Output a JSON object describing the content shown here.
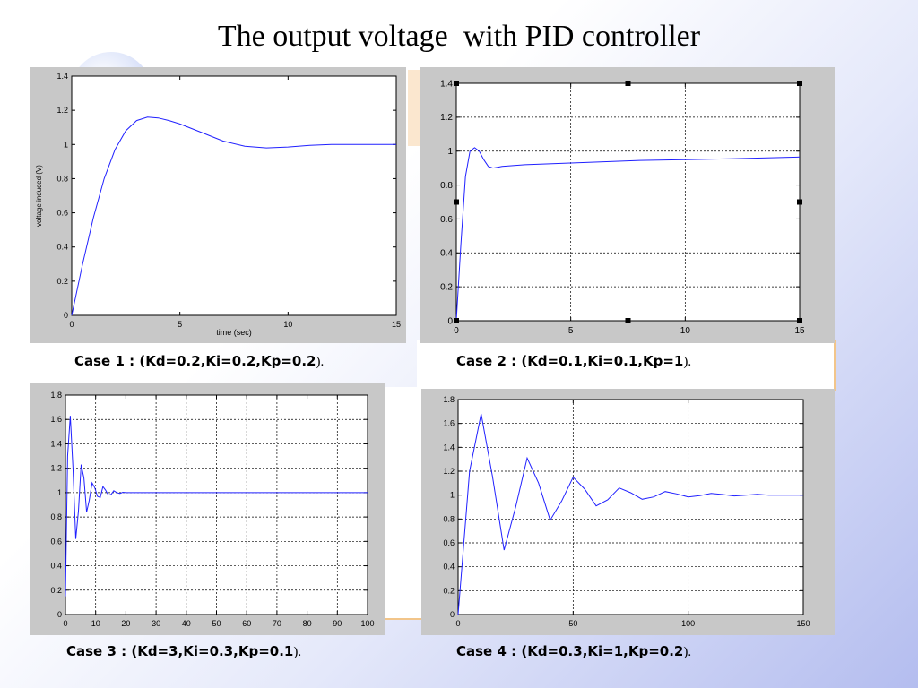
{
  "slide": {
    "title": "The output voltage  with PID controller"
  },
  "captions": [
    {
      "label": "Case 1 : (Kd=0.2,Ki=0.2,Kp=0.2",
      "tail": ")."
    },
    {
      "label": "Case 2 : (Kd=0.1,Ki=0.1,Kp=1",
      "tail": ")."
    },
    {
      "label": "Case 3 : (Kd=3,Ki=0.3,Kp=0.1",
      "tail": ")."
    },
    {
      "label": "Case 4 : (Kd=0.3,Ki=1,Kp=0.2",
      "tail": ")."
    }
  ],
  "colors": {
    "line": "#2020ff",
    "plot_bg": "#c8c8c8",
    "axes_bg": "#ffffff",
    "grid": "#000000"
  },
  "chart_data": [
    {
      "type": "line",
      "xlabel": "time (sec)",
      "ylabel": "voltage induced (V)",
      "xlim": [
        0,
        15
      ],
      "ylim": [
        0,
        1.4
      ],
      "xticks": [
        0,
        5,
        10,
        15
      ],
      "yticks": [
        0,
        0.2,
        0.4,
        0.6,
        0.8,
        1,
        1.2,
        1.4
      ],
      "xticklabels": [
        "0",
        "5",
        "10",
        "15"
      ],
      "yticklabels": [
        "0",
        "0.2",
        "0.4",
        "0.6",
        "0.8",
        "1",
        "1.2",
        "1.4"
      ],
      "grid": false,
      "series": [
        {
          "x": [
            0,
            0.5,
            1,
            1.5,
            2,
            2.5,
            3,
            3.5,
            4,
            4.5,
            5,
            6,
            7,
            8,
            9,
            10,
            11,
            12,
            13,
            14,
            15
          ],
          "y": [
            0,
            0.3,
            0.57,
            0.8,
            0.97,
            1.08,
            1.14,
            1.16,
            1.155,
            1.14,
            1.12,
            1.07,
            1.02,
            0.99,
            0.98,
            0.985,
            0.995,
            1.0,
            1.0,
            1.0,
            1.0
          ]
        }
      ]
    },
    {
      "type": "line",
      "xlabel": "",
      "ylabel": "",
      "xlim": [
        0,
        15
      ],
      "ylim": [
        0,
        1.4
      ],
      "xticks": [
        0,
        5,
        10,
        15
      ],
      "yticks": [
        0,
        0.2,
        0.4,
        0.6,
        0.8,
        1,
        1.2,
        1.4
      ],
      "xticklabels": [
        "0",
        "5",
        "10",
        "15"
      ],
      "yticklabels": [
        "0",
        "0.2",
        "0.4",
        "0.6",
        "0.8",
        "1",
        "1.2",
        "1.4"
      ],
      "grid": true,
      "series": [
        {
          "x": [
            0,
            0.2,
            0.4,
            0.6,
            0.8,
            1.0,
            1.2,
            1.4,
            1.6,
            1.8,
            2,
            3,
            5,
            8,
            10,
            12,
            15
          ],
          "y": [
            0,
            0.45,
            0.85,
            1.0,
            1.02,
            1.0,
            0.95,
            0.91,
            0.9,
            0.905,
            0.91,
            0.92,
            0.93,
            0.945,
            0.95,
            0.955,
            0.965
          ]
        }
      ]
    },
    {
      "type": "line",
      "xlabel": "",
      "ylabel": "",
      "xlim": [
        0,
        100
      ],
      "ylim": [
        0,
        1.8
      ],
      "xticks": [
        0,
        10,
        20,
        30,
        40,
        50,
        60,
        70,
        80,
        90,
        100
      ],
      "yticks": [
        0,
        0.2,
        0.4,
        0.6,
        0.8,
        1,
        1.2,
        1.4,
        1.6,
        1.8
      ],
      "xticklabels": [
        "0",
        "10",
        "20",
        "30",
        "40",
        "50",
        "60",
        "70",
        "80",
        "90",
        "100"
      ],
      "yticklabels": [
        "0",
        "0.2",
        "0.4",
        "0.6",
        "0.8",
        "1",
        "1.2",
        "1.4",
        "1.6",
        "1.8"
      ],
      "grid": true,
      "series": [
        {
          "x": [
            0,
            0.7,
            1.6,
            2.5,
            3.4,
            4.3,
            5.2,
            6.1,
            7,
            7.9,
            8.8,
            9.7,
            10.6,
            11.5,
            12.4,
            13.3,
            14.2,
            15.1,
            16,
            17,
            18,
            19,
            20,
            22,
            30,
            100
          ],
          "y": [
            0.15,
            1.3,
            1.63,
            1.2,
            0.62,
            0.85,
            1.23,
            1.12,
            0.84,
            0.94,
            1.08,
            1.04,
            0.97,
            0.96,
            1.05,
            1.02,
            0.98,
            0.985,
            1.015,
            1.0,
            0.993,
            1.003,
            1.0,
            1.0,
            1.0,
            1.0
          ]
        }
      ]
    },
    {
      "type": "line",
      "xlabel": "",
      "ylabel": "",
      "xlim": [
        0,
        150
      ],
      "ylim": [
        0,
        1.8
      ],
      "xticks": [
        0,
        50,
        100,
        150
      ],
      "yticks": [
        0,
        0.2,
        0.4,
        0.6,
        0.8,
        1,
        1.2,
        1.4,
        1.6,
        1.8
      ],
      "xticklabels": [
        "0",
        "50",
        "100",
        "150"
      ],
      "yticklabels": [
        "0",
        "0.2",
        "0.4",
        "0.6",
        "0.8",
        "1",
        "1.2",
        "1.4",
        "1.6",
        "1.8"
      ],
      "grid": true,
      "series": [
        {
          "x": [
            0,
            5,
            10,
            15,
            20,
            25,
            30,
            35,
            40,
            45,
            50,
            55,
            60,
            65,
            70,
            75,
            80,
            85,
            90,
            95,
            100,
            105,
            110,
            115,
            120,
            125,
            130,
            135,
            140,
            145,
            150
          ],
          "y": [
            0,
            1.2,
            1.68,
            1.15,
            0.54,
            0.9,
            1.31,
            1.1,
            0.79,
            0.95,
            1.15,
            1.05,
            0.91,
            0.96,
            1.06,
            1.02,
            0.965,
            0.985,
            1.03,
            1.01,
            0.985,
            0.995,
            1.015,
            1.005,
            0.993,
            1.0,
            1.007,
            1.0,
            1.0,
            1.0,
            1.0
          ]
        }
      ]
    }
  ]
}
